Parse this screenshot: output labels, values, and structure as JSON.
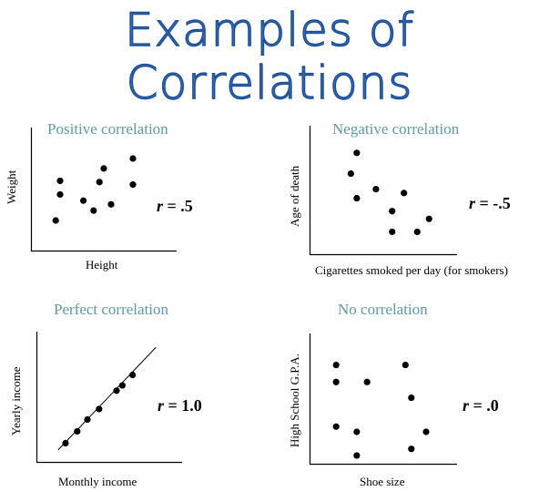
{
  "title": "Examples of Correlations",
  "chart_data": [
    {
      "type": "scatter",
      "title": "Positive correlation",
      "xlabel": "Height",
      "ylabel": "Weight",
      "r_label": "r = .5",
      "r_symbol": "r",
      "r_value": "= .5",
      "xlim": [
        0,
        10
      ],
      "ylim": [
        0,
        10
      ],
      "grid": false,
      "points": [
        {
          "x": 1.7,
          "y": 2.5
        },
        {
          "x": 2.0,
          "y": 4.6
        },
        {
          "x": 2.0,
          "y": 5.7
        },
        {
          "x": 3.6,
          "y": 4.1
        },
        {
          "x": 4.3,
          "y": 3.3
        },
        {
          "x": 4.7,
          "y": 5.6
        },
        {
          "x": 5.0,
          "y": 6.7
        },
        {
          "x": 5.5,
          "y": 3.8
        },
        {
          "x": 7.0,
          "y": 7.5
        },
        {
          "x": 7.0,
          "y": 5.4
        }
      ]
    },
    {
      "type": "scatter",
      "title": "Negative correlation",
      "xlabel": "Cigarettes smoked per day (for smokers)",
      "ylabel": "Age of death",
      "r_label": "r = -.5",
      "r_symbol": "r",
      "r_value": "= -.5",
      "xlim": [
        0,
        10
      ],
      "ylim": [
        0,
        10
      ],
      "grid": false,
      "points": [
        {
          "x": 2.8,
          "y": 6.3
        },
        {
          "x": 3.2,
          "y": 7.9
        },
        {
          "x": 3.2,
          "y": 4.4
        },
        {
          "x": 4.5,
          "y": 5.1
        },
        {
          "x": 5.6,
          "y": 3.4
        },
        {
          "x": 5.6,
          "y": 1.8
        },
        {
          "x": 6.4,
          "y": 4.8
        },
        {
          "x": 7.3,
          "y": 1.8
        },
        {
          "x": 8.1,
          "y": 2.8
        }
      ]
    },
    {
      "type": "scatter",
      "title": "Perfect correlation",
      "xlabel": "Monthly income",
      "ylabel": "Yearly income",
      "r_label": "r = 1.0",
      "r_symbol": "r",
      "r_value": "= 1.0",
      "xlim": [
        0,
        10
      ],
      "ylim": [
        0,
        10
      ],
      "grid": false,
      "fit_line": {
        "x": [
          1.5,
          8.2
        ],
        "y": [
          1.0,
          8.8
        ]
      },
      "points": [
        {
          "x": 2.0,
          "y": 1.5
        },
        {
          "x": 2.8,
          "y": 2.4
        },
        {
          "x": 3.5,
          "y": 3.3
        },
        {
          "x": 4.3,
          "y": 4.1
        },
        {
          "x": 5.5,
          "y": 5.5
        },
        {
          "x": 5.9,
          "y": 5.9
        },
        {
          "x": 6.6,
          "y": 6.7
        }
      ]
    },
    {
      "type": "scatter",
      "title": "No correlation",
      "xlabel": "Shoe size",
      "ylabel": "High School G.P.A.",
      "r_label": "r = .0",
      "r_symbol": "r",
      "r_value": "= .0",
      "xlim": [
        0,
        10
      ],
      "ylim": [
        0,
        10
      ],
      "grid": false,
      "points": [
        {
          "x": 1.8,
          "y": 7.6
        },
        {
          "x": 1.8,
          "y": 6.3
        },
        {
          "x": 1.8,
          "y": 2.9
        },
        {
          "x": 3.2,
          "y": 2.5
        },
        {
          "x": 3.2,
          "y": 0.7
        },
        {
          "x": 3.9,
          "y": 6.3
        },
        {
          "x": 6.5,
          "y": 7.6
        },
        {
          "x": 6.9,
          "y": 5.1
        },
        {
          "x": 6.9,
          "y": 1.2
        },
        {
          "x": 7.9,
          "y": 2.5
        }
      ]
    }
  ]
}
